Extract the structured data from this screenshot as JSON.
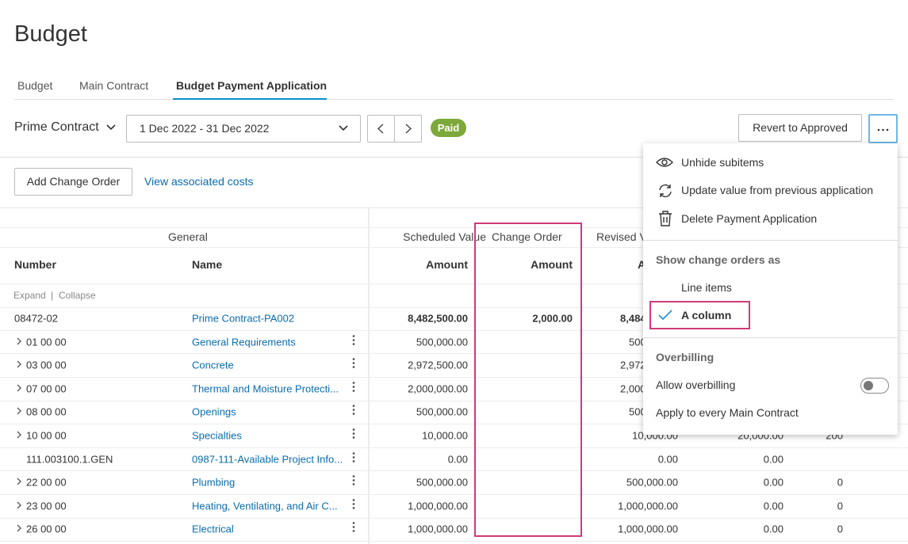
{
  "header": {
    "title": "Budget"
  },
  "tabs": [
    "Budget",
    "Main Contract",
    "Budget Payment Application"
  ],
  "toolbar": {
    "contract": "Prime Contract",
    "period": "1 Dec 2022 - 31 Dec 2022",
    "status": "Paid",
    "revert": "Revert to Approved"
  },
  "actions": {
    "add": "Add Change Order",
    "view": "View associated costs"
  },
  "table": {
    "groups": [
      "General",
      "Scheduled Value",
      "Change Order",
      "Revised V"
    ],
    "columns": [
      "Number",
      "Name",
      "Amount",
      "Amount",
      "A"
    ],
    "expand": "Expand",
    "separator": "|",
    "collapse": "Collapse",
    "rows": [
      {
        "number": "08472-02",
        "name": "Prime Contract-PA002",
        "scheduled": "8,482,500.00",
        "change_order": "2,000.00",
        "revised": "8,484",
        "revised_clipped": true,
        "bold": true
      },
      {
        "number": "01 00 00",
        "name": "General Requirements",
        "scheduled": "500,000.00",
        "revised": "500",
        "revised_clipped": true,
        "expandable": true
      },
      {
        "number": "03 00 00",
        "name": "Concrete",
        "scheduled": "2,972,500.00",
        "revised": "2,972",
        "revised_clipped": true,
        "expandable": true
      },
      {
        "number": "07 00 00",
        "name": "Thermal and Moisture Protecti...",
        "scheduled": "2,000,000.00",
        "revised": "2,000",
        "revised_clipped": true,
        "expandable": true
      },
      {
        "number": "08 00 00",
        "name": "Openings",
        "scheduled": "500,000.00",
        "revised": "500",
        "revised_clipped": true,
        "expandable": true
      },
      {
        "number": "10 00 00",
        "name": "Specialties",
        "scheduled": "10,000.00",
        "revised": "10,000.00",
        "previous": "20,000.00",
        "percent": "200",
        "expandable": true
      },
      {
        "number": "111.003100.1.GEN",
        "name": "0987-111-Available Project Info...",
        "scheduled": "0.00",
        "revised": "0.00",
        "previous": "0.00"
      },
      {
        "number": "22 00 00",
        "name": "Plumbing",
        "scheduled": "500,000.00",
        "revised": "500,000.00",
        "previous": "0.00",
        "percent": "0",
        "expandable": true
      },
      {
        "number": "23 00 00",
        "name": "Heating, Ventilating, and Air C...",
        "scheduled": "1,000,000.00",
        "revised": "1,000,000.00",
        "previous": "0.00",
        "percent": "0",
        "expandable": true
      },
      {
        "number": "26 00 00",
        "name": "Electrical",
        "scheduled": "1,000,000.00",
        "revised": "1,000,000.00",
        "previous": "0.00",
        "percent": "0",
        "expandable": true
      }
    ]
  },
  "menu": {
    "unhide": "Unhide subitems",
    "update": "Update value from previous application",
    "delete": "Delete Payment Application",
    "show_heading": "Show change orders as",
    "line_items": "Line items",
    "a_column": "A column",
    "overbilling_heading": "Overbilling",
    "allow": "Allow overbilling",
    "apply": "Apply to every Main Contract"
  }
}
